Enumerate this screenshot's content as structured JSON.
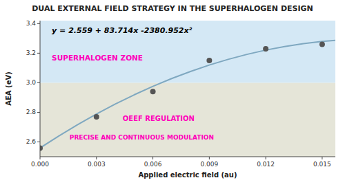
{
  "chart_data": {
    "type": "scatter",
    "title": "DUAL EXTERNAL FIELD STRATEGY IN THE SUPERHALOGEN DESIGN",
    "xlabel": "Applied electric field (au)",
    "ylabel": "AEA (eV)",
    "xlim": [
      0.0,
      0.0157
    ],
    "ylim": [
      2.5,
      3.42
    ],
    "xticks": [
      {
        "value": 0,
        "label": "0.000"
      },
      0.003,
      0.006,
      0.009,
      0.012,
      0.015
    ],
    "yticks": [
      2.6,
      2.8,
      {
        "value": 3.0,
        "label": "3.0"
      },
      3.2,
      3.4
    ],
    "grid": false,
    "bands": [
      {
        "from": 2.5,
        "to": 3.0,
        "color": "#e5e5d8"
      },
      {
        "from": 3.0,
        "to": 3.42,
        "color": "#d4e8f5"
      }
    ],
    "series": [
      {
        "type": "scatter",
        "color": "#555555",
        "x": [
          0.0,
          0.003,
          0.006,
          0.009,
          0.012,
          0.015
        ],
        "values": [
          2.558,
          2.77,
          2.94,
          3.15,
          3.23,
          3.26
        ]
      },
      {
        "type": "line",
        "color": "#7fa8c0",
        "x": [
          0,
          0.001,
          0.002,
          0.003,
          0.004,
          0.005,
          0.006,
          0.007,
          0.008,
          0.009,
          0.01,
          0.011,
          0.012,
          0.013,
          0.014,
          0.015,
          0.0157
        ],
        "values": [
          2.559,
          2.640333048,
          2.716904192,
          2.788713432,
          2.855760768,
          2.9180462,
          2.975569728,
          3.028331352,
          3.076331072,
          3.119568888,
          3.1580448,
          3.191758808,
          3.220710912,
          3.244901112,
          3.264329408,
          3.2789958,
          3.286428942
        ]
      }
    ],
    "annotations": [
      {
        "text": "y = 2.559 + 83.714x -2380.952x²",
        "color": "#000000"
      },
      {
        "text": "SUPERHALOGEN ZONE",
        "color": "#ff00bb"
      },
      {
        "text": "OEEF REGULATION",
        "color": "#ff00bb"
      },
      {
        "text": "PRECISE AND CONTINUOUS MODULATION",
        "color": "#ff00bb"
      }
    ]
  }
}
